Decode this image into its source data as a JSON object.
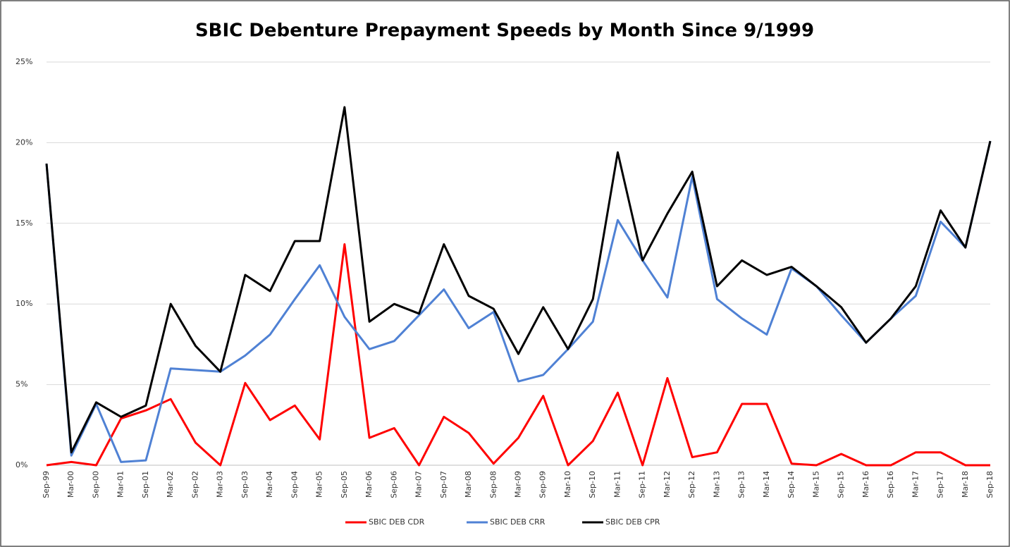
{
  "chart_data": {
    "type": "line",
    "title": "SBIC Debenture Prepayment Speeds by Month Since 9/1999",
    "categories": [
      "Sep-99",
      "Mar-00",
      "Sep-00",
      "Mar-01",
      "Sep-01",
      "Mar-02",
      "Sep-02",
      "Mar-03",
      "Sep-03",
      "Mar-04",
      "Sep-04",
      "Mar-05",
      "Sep-05",
      "Mar-06",
      "Sep-06",
      "Mar-07",
      "Sep-07",
      "Mar-08",
      "Sep-08",
      "Mar-09",
      "Sep-09",
      "Mar-10",
      "Sep-10",
      "Mar-11",
      "Sep-11",
      "Mar-12",
      "Sep-12",
      "Mar-13",
      "Sep-13",
      "Mar-14",
      "Sep-14",
      "Mar-15",
      "Sep-15",
      "Mar-16",
      "Sep-16",
      "Mar-17",
      "Sep-17",
      "Mar-18",
      "Sep-18"
    ],
    "series": [
      {
        "name": "SBIC DEB CDR",
        "color": "#ff0000",
        "values": [
          0,
          0.2,
          0,
          2.9,
          3.4,
          4.1,
          1.4,
          0,
          5.1,
          2.8,
          3.7,
          1.6,
          13.7,
          1.7,
          2.3,
          0,
          3.0,
          2.0,
          0.1,
          1.7,
          4.3,
          0,
          1.5,
          4.5,
          0,
          5.4,
          0.5,
          0.8,
          3.8,
          3.8,
          0.1,
          0,
          0.7,
          0,
          0,
          0.8,
          0.8,
          0,
          0
        ]
      },
      {
        "name": "SBIC DEB CRR",
        "color": "#4f81d4",
        "values": [
          18.7,
          0.6,
          3.8,
          0.2,
          0.3,
          6.0,
          5.9,
          5.8,
          6.8,
          8.1,
          10.3,
          12.4,
          9.2,
          7.2,
          7.7,
          9.3,
          10.9,
          8.5,
          9.5,
          5.2,
          5.6,
          7.2,
          8.9,
          15.2,
          12.7,
          10.4,
          17.9,
          10.3,
          9.1,
          8.1,
          12.2,
          11.1,
          9.3,
          7.6,
          9.1,
          10.5,
          15.1,
          13.5,
          20.1
        ]
      },
      {
        "name": "SBIC DEB CPR",
        "color": "#000000",
        "values": [
          18.7,
          0.8,
          3.9,
          3.0,
          3.7,
          10.0,
          7.4,
          5.8,
          11.8,
          10.8,
          13.9,
          13.9,
          22.2,
          8.9,
          10.0,
          9.4,
          13.7,
          10.5,
          9.7,
          6.9,
          9.8,
          7.2,
          10.3,
          19.4,
          12.7,
          15.6,
          18.2,
          11.1,
          12.7,
          11.8,
          12.3,
          11.1,
          9.8,
          7.6,
          9.1,
          11.1,
          15.8,
          13.5,
          20.1
        ]
      }
    ],
    "ylim": [
      0,
      25
    ],
    "yticks": [
      {
        "value": 0,
        "label": "0%"
      },
      {
        "value": 5,
        "label": "5%"
      },
      {
        "value": 10,
        "label": "10%"
      },
      {
        "value": 15,
        "label": "15%"
      },
      {
        "value": 20,
        "label": "20%"
      },
      {
        "value": 25,
        "label": "25%"
      }
    ],
    "grid": true,
    "legend": "bottom"
  }
}
